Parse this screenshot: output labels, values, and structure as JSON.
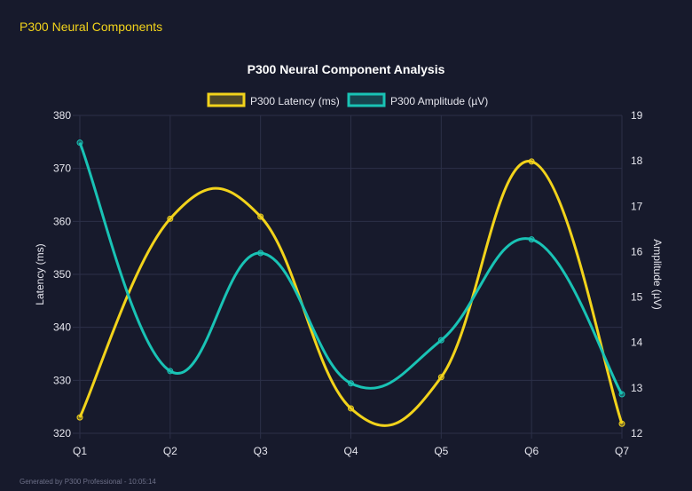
{
  "header": {
    "title": "P300 Neural Components"
  },
  "footer": {
    "text": "Generated by P300 Professional - 10:05:14"
  },
  "chart_data": {
    "type": "line",
    "title": "P300 Neural Component Analysis",
    "categories": [
      "Q1",
      "Q2",
      "Q3",
      "Q4",
      "Q5",
      "Q6",
      "Q7"
    ],
    "legend_position": "top",
    "grid": true,
    "y_left": {
      "label": "Latency (ms)",
      "range": [
        320,
        380
      ],
      "ticks": [
        320,
        330,
        340,
        350,
        360,
        370,
        380
      ]
    },
    "y_right": {
      "label": "Amplitude (µV)",
      "range": [
        12,
        19
      ],
      "ticks": [
        12,
        13,
        14,
        15,
        16,
        17,
        18,
        19
      ]
    },
    "series": [
      {
        "name": "P300 Latency (ms)",
        "axis": "left",
        "color": "#f2d31b",
        "values": [
          323.0,
          360.5,
          360.9,
          324.7,
          330.6,
          371.3,
          321.8
        ]
      },
      {
        "name": "P300 Amplitude (µV)",
        "axis": "right",
        "color": "#19c3b5",
        "values": [
          18.4,
          13.37,
          15.97,
          13.1,
          14.05,
          16.27,
          12.86
        ]
      }
    ]
  }
}
